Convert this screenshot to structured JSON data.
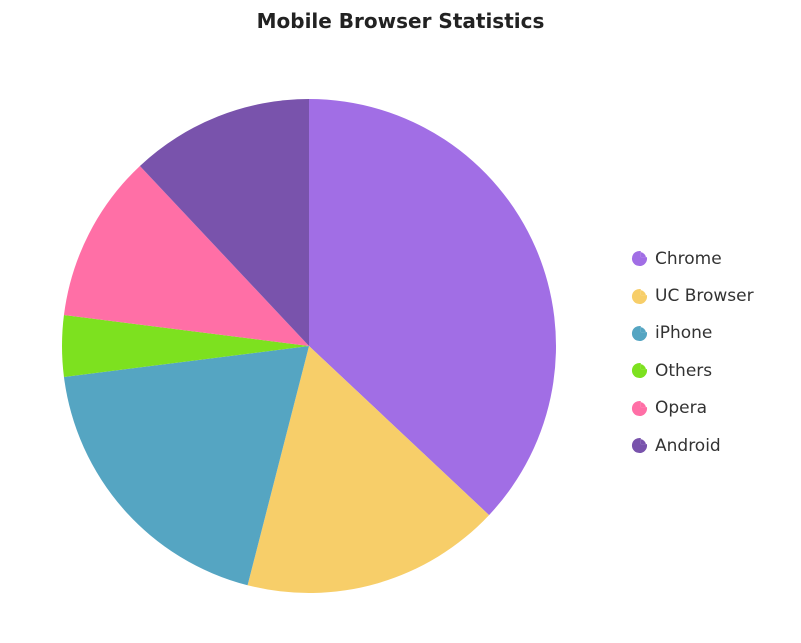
{
  "chart_data": {
    "type": "pie",
    "title": "Mobile Browser Statistics",
    "categories": [
      "Chrome",
      "UC Browser",
      "iPhone",
      "Others",
      "Opera",
      "Android"
    ],
    "values": [
      37,
      17,
      19,
      4,
      11,
      12
    ],
    "colors": [
      "#A16EE5",
      "#F7CE69",
      "#55A5C2",
      "#7DE11F",
      "#FF6FA6",
      "#7953AC"
    ],
    "start_angle": "top, clockwise",
    "legend_position": "right",
    "legend_marker": "pie-icon"
  }
}
